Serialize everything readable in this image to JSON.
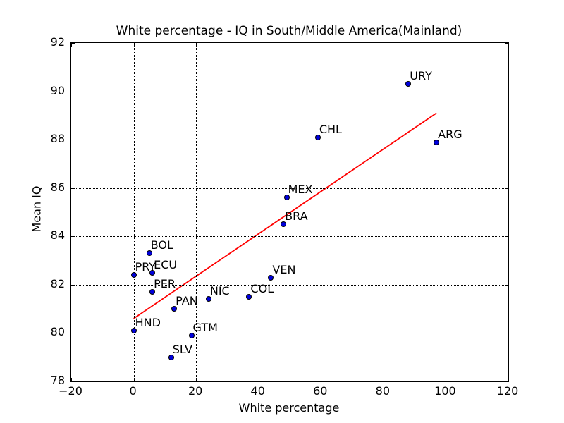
{
  "figure": {
    "title": "White percentage - IQ in South/Middle America(Mainland)"
  },
  "chart_data": {
    "type": "scatter",
    "title": "White percentage - IQ in South/Middle America(Mainland)",
    "xlabel": "White percentage",
    "ylabel": "Mean IQ",
    "xlim": [
      -20,
      120
    ],
    "ylim": [
      78,
      92
    ],
    "xticks": [
      -20,
      0,
      20,
      40,
      60,
      80,
      100,
      120
    ],
    "yticks": [
      78,
      80,
      82,
      84,
      86,
      88,
      90,
      92
    ],
    "grid": true,
    "grid_linestyle": "dotted",
    "legend": false,
    "marker_color": "#0000dd",
    "marker_edge_color": "#000000",
    "points": [
      {
        "label": "URY",
        "x": 88,
        "y": 90.3
      },
      {
        "label": "ARG",
        "x": 97,
        "y": 87.9
      },
      {
        "label": "CHL",
        "x": 59,
        "y": 88.1
      },
      {
        "label": "MEX",
        "x": 49,
        "y": 85.6
      },
      {
        "label": "BRA",
        "x": 48,
        "y": 84.5
      },
      {
        "label": "VEN",
        "x": 44,
        "y": 82.3
      },
      {
        "label": "COL",
        "x": 37,
        "y": 81.5
      },
      {
        "label": "NIC",
        "x": 24,
        "y": 81.4
      },
      {
        "label": "GTM",
        "x": 18.5,
        "y": 79.9
      },
      {
        "label": "PAN",
        "x": 13,
        "y": 81.0
      },
      {
        "label": "SLV",
        "x": 12,
        "y": 79.0
      },
      {
        "label": "ECU",
        "x": 6,
        "y": 82.5
      },
      {
        "label": "PER",
        "x": 6,
        "y": 81.7
      },
      {
        "label": "BOL",
        "x": 5,
        "y": 83.3
      },
      {
        "label": "PRY",
        "x": 0,
        "y": 82.4
      },
      {
        "label": "HND",
        "x": 0,
        "y": 80.1
      }
    ],
    "trend_line": {
      "color": "#ff0000",
      "x1": 0,
      "y1": 80.6,
      "x2": 97,
      "y2": 89.1
    }
  }
}
